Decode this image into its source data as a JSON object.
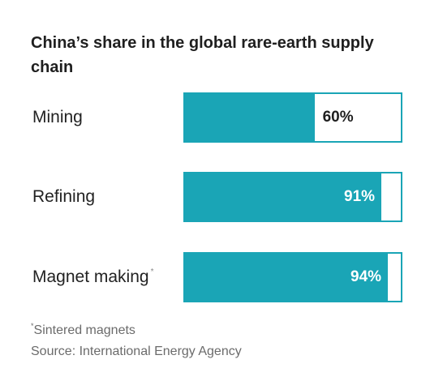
{
  "chart_data": {
    "type": "bar",
    "orientation": "horizontal",
    "title": "China’s share in the global rare-earth supply chain",
    "categories": [
      "Mining",
      "Refining",
      "Magnet making"
    ],
    "category_notes": [
      "",
      "",
      "*"
    ],
    "values": [
      60,
      91,
      94
    ],
    "value_labels": [
      "60%",
      "91%",
      "94%"
    ],
    "unit": "%",
    "xlim": [
      0,
      100
    ],
    "grid": false,
    "legend": "none",
    "colors": {
      "bar": "#1aa5b6",
      "track": "#ffffff",
      "label_inside": "#ffffff",
      "label_outside": "#1f1f1f"
    }
  },
  "footnotes": {
    "marker": "*",
    "note": "Sintered magnets",
    "source": "Source: International Energy Agency"
  }
}
